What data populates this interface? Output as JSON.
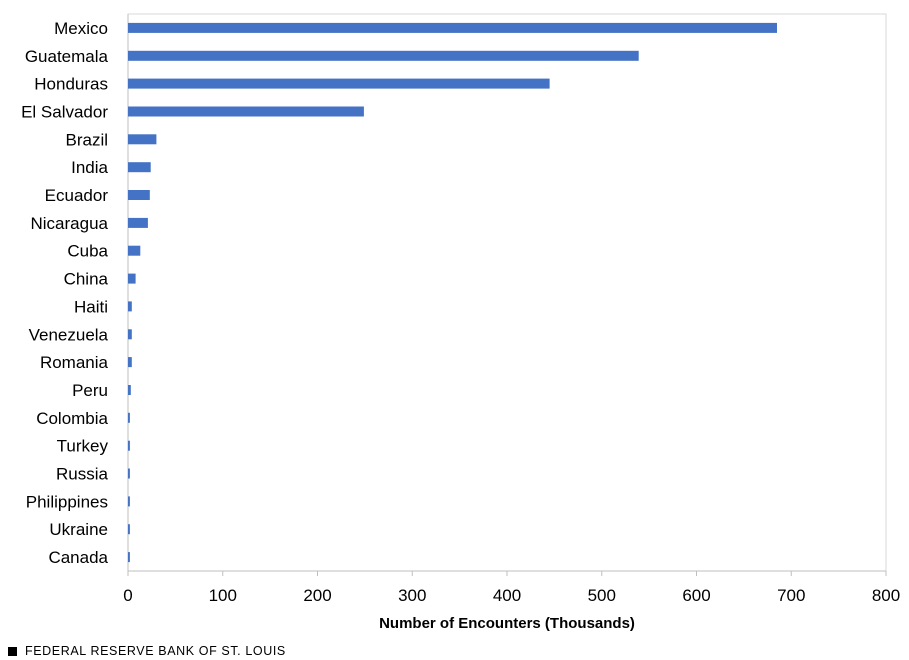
{
  "chart_data": {
    "type": "bar",
    "orientation": "horizontal",
    "categories": [
      "Mexico",
      "Guatemala",
      "Honduras",
      "El Salvador",
      "Brazil",
      "India",
      "Ecuador",
      "Nicaragua",
      "Cuba",
      "China",
      "Haiti",
      "Venezuela",
      "Romania",
      "Peru",
      "Colombia",
      "Turkey",
      "Russia",
      "Philippines",
      "Ukraine",
      "Canada"
    ],
    "values": [
      685,
      539,
      445,
      249,
      30,
      24,
      23,
      21,
      13,
      8,
      4,
      4,
      4,
      3,
      2,
      2,
      2,
      2,
      2,
      2
    ],
    "xlabel": "Number of Encounters (Thousands)",
    "ylabel": "",
    "xlim": [
      0,
      800
    ],
    "xticks": [
      0,
      100,
      200,
      300,
      400,
      500,
      600,
      700,
      800
    ],
    "grid": false,
    "colors": {
      "bar": "#4472C4",
      "frame": "#D9D9D9",
      "axis": "#BFBFBF"
    }
  },
  "footer": {
    "source": "FEDERAL RESERVE BANK OF ST. LOUIS"
  }
}
